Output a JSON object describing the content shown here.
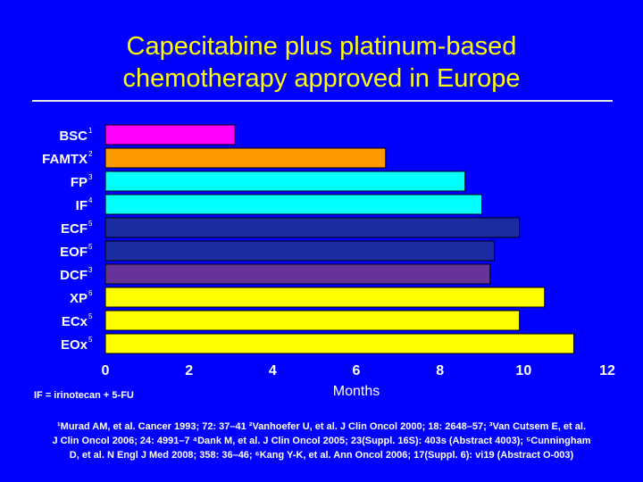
{
  "slide": {
    "title_line1": "Capecitabine plus platinum-based",
    "title_line2": "chemotherapy approved in Europe",
    "footnote_abbrev": "IF = irinotecan + 5-FU",
    "references": [
      "¹Murad AM, et al. Cancer 1993; 72: 37–41 ²Vanhoefer U, et al. J Clin Oncol 2000; 18: 2648–57; ³Van Cutsem E, et al.",
      "J Clin Oncol 2006; 24: 4991–7 ⁴Dank M, et al. J Clin Oncol 2005; 23(Suppl. 16S): 403s (Abstract 4003); ⁵Cunningham",
      "D, et al. N Engl J Med 2008; 358: 36–46; ⁶Kang Y-K, et al. Ann Oncol 2006; 17(Suppl. 6): vi19 (Abstract O-003)"
    ],
    "colors": {
      "background": "#0000FF",
      "title": "#FFFF00",
      "text": "#FFFFFF"
    }
  },
  "chart_data": {
    "type": "bar",
    "orientation": "horizontal",
    "title": "",
    "xlabel": "Months",
    "ylabel": "",
    "xlim": [
      0,
      12
    ],
    "xticks": [
      "0",
      "2",
      "4",
      "6",
      "8",
      "10",
      "12"
    ],
    "grid": false,
    "legend": "none",
    "categories": [
      {
        "name": "BSC",
        "sup": "1"
      },
      {
        "name": "FAMTX",
        "sup": "2"
      },
      {
        "name": "FP",
        "sup": "3"
      },
      {
        "name": "IF",
        "sup": "4"
      },
      {
        "name": "ECF",
        "sup": "5"
      },
      {
        "name": "EOF",
        "sup": "5"
      },
      {
        "name": "DCF",
        "sup": "3"
      },
      {
        "name": "XP",
        "sup": "6"
      },
      {
        "name": "ECx",
        "sup": "5"
      },
      {
        "name": "EOx",
        "sup": "5"
      }
    ],
    "values": [
      3.1,
      6.7,
      8.6,
      9.0,
      9.9,
      9.3,
      9.2,
      10.5,
      9.9,
      11.2
    ],
    "bar_colors": [
      "#FF00FF",
      "#FF9900",
      "#00FFFF",
      "#00FFFF",
      "#1A2CA0",
      "#1A2CA0",
      "#663399",
      "#FFFF00",
      "#FFFF00",
      "#FFFF00"
    ]
  }
}
